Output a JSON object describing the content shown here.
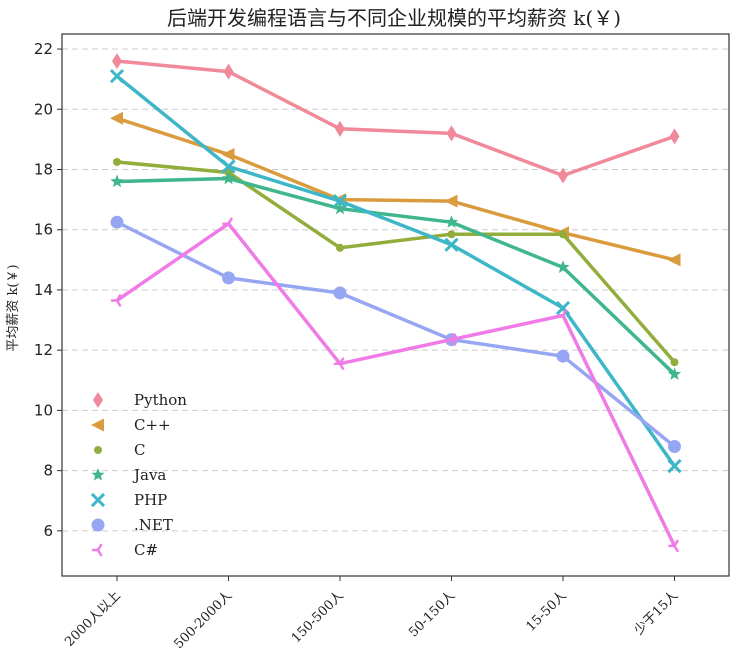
{
  "chart_data": {
    "type": "line",
    "title": "后端开发编程语言与不同企业规模的平均薪资 k(￥)",
    "xlabel": "",
    "ylabel": "平均薪资 k(￥)",
    "categories": [
      "2000人以上",
      "500-2000人",
      "150-500人",
      "50-150人",
      "15-50人",
      "少于15人"
    ],
    "ylim": [
      4.5,
      22.5
    ],
    "yticks": [
      6,
      8,
      10,
      12,
      14,
      16,
      18,
      20,
      22
    ],
    "grid": "horizontal dashed",
    "legend_position": "lower-left",
    "series": [
      {
        "name": "Python",
        "color": "#f0899a",
        "marker": "thin-diamond",
        "values": [
          21.6,
          21.25,
          19.35,
          19.2,
          17.8,
          19.1
        ]
      },
      {
        "name": "C++",
        "color": "#d99b3e",
        "marker": "triangle-left",
        "values": [
          19.7,
          18.5,
          17.0,
          16.95,
          15.9,
          15.0
        ]
      },
      {
        "name": "C",
        "color": "#92ad3c",
        "marker": "circle",
        "values": [
          18.25,
          17.9,
          15.4,
          15.85,
          15.85,
          11.6
        ]
      },
      {
        "name": "Java",
        "color": "#3fb68c",
        "marker": "star",
        "values": [
          17.6,
          17.7,
          16.7,
          16.25,
          14.75,
          11.2
        ]
      },
      {
        "name": "PHP",
        "color": "#3db7c7",
        "marker": "x",
        "values": [
          21.1,
          18.1,
          16.95,
          15.5,
          13.4,
          8.15
        ]
      },
      {
        "name": ".NET",
        "color": "#97a6f2",
        "marker": "circle-large",
        "values": [
          16.25,
          14.4,
          13.9,
          12.35,
          11.8,
          8.8
        ]
      },
      {
        "name": "C#",
        "color": "#f07be6",
        "marker": "tri-left",
        "values": [
          13.65,
          16.2,
          11.55,
          12.35,
          13.15,
          5.5
        ]
      }
    ]
  }
}
